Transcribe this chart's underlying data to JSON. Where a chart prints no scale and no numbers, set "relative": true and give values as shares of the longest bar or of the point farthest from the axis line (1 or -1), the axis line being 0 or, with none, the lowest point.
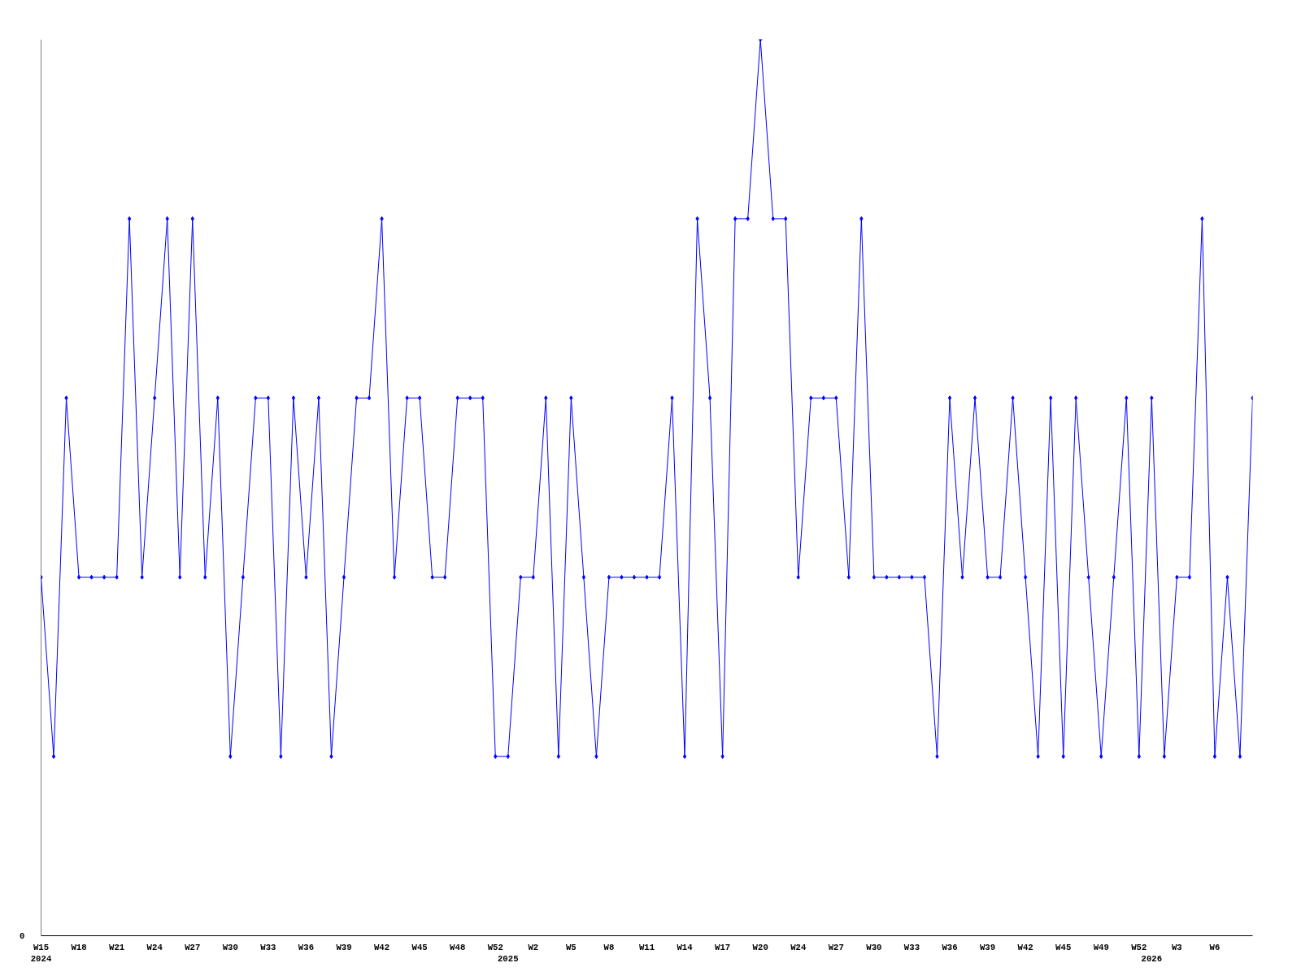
{
  "chart_data": {
    "type": "line",
    "relative": true,
    "marker": "diamond",
    "line_style": "solid",
    "grid": false,
    "annotations": [
      "0"
    ],
    "categories": [
      "W15\n2024",
      null,
      null,
      "W18",
      null,
      null,
      "W21",
      null,
      null,
      "W24",
      null,
      null,
      "W27",
      null,
      null,
      "W30",
      null,
      null,
      "W33",
      null,
      null,
      "W36",
      null,
      null,
      "W39",
      null,
      null,
      "W42",
      null,
      null,
      "W45",
      null,
      null,
      "W48",
      null,
      null,
      "W52",
      "\n2025",
      null,
      "W2",
      null,
      null,
      "W5",
      null,
      null,
      "W8",
      null,
      null,
      "W11",
      null,
      null,
      "W14",
      null,
      null,
      "W17",
      null,
      null,
      "W20",
      null,
      null,
      "W24",
      null,
      null,
      "W27",
      null,
      null,
      "W30",
      null,
      null,
      "W33",
      null,
      null,
      "W36",
      null,
      null,
      "W39",
      null,
      null,
      "W42",
      null,
      null,
      "W45",
      null,
      null,
      "W49",
      null,
      null,
      "W52",
      "\n2026",
      null,
      "W3",
      null,
      null,
      "W6",
      null,
      null,
      null
    ],
    "series": [
      {
        "color": "#0000ff",
        "values": [
          0.4,
          0.2,
          0.6,
          0.4,
          0.4,
          0.4,
          0.4,
          0.8,
          0.4,
          0.6,
          0.8,
          0.4,
          0.8,
          0.4,
          0.6,
          0.2,
          0.4,
          0.6,
          0.6,
          0.2,
          0.6,
          0.4,
          0.6,
          0.2,
          0.4,
          0.6,
          0.6,
          0.8,
          0.4,
          0.6,
          0.6,
          0.4,
          0.4,
          0.6,
          0.6,
          0.6,
          0.2,
          0.2,
          0.4,
          0.4,
          0.6,
          0.2,
          0.6,
          0.4,
          0.2,
          0.4,
          0.4,
          0.4,
          0.4,
          0.4,
          0.6,
          0.2,
          0.8,
          0.6,
          0.2,
          0.8,
          0.8,
          1,
          0.8,
          0.8,
          0.4,
          0.6,
          0.6,
          0.6,
          0.4,
          0.8,
          0.4,
          0.4,
          0.4,
          0.4,
          0.4,
          0.2,
          0.6,
          0.4,
          0.6,
          0.4,
          0.4,
          0.6,
          0.4,
          0.2,
          0.6,
          0.2,
          0.6,
          0.4,
          0.2,
          0.4,
          0.6,
          0.2,
          0.6,
          0.2,
          0.4,
          0.4,
          0.8,
          0.2,
          0.4,
          0.2,
          0.6
        ]
      }
    ]
  }
}
